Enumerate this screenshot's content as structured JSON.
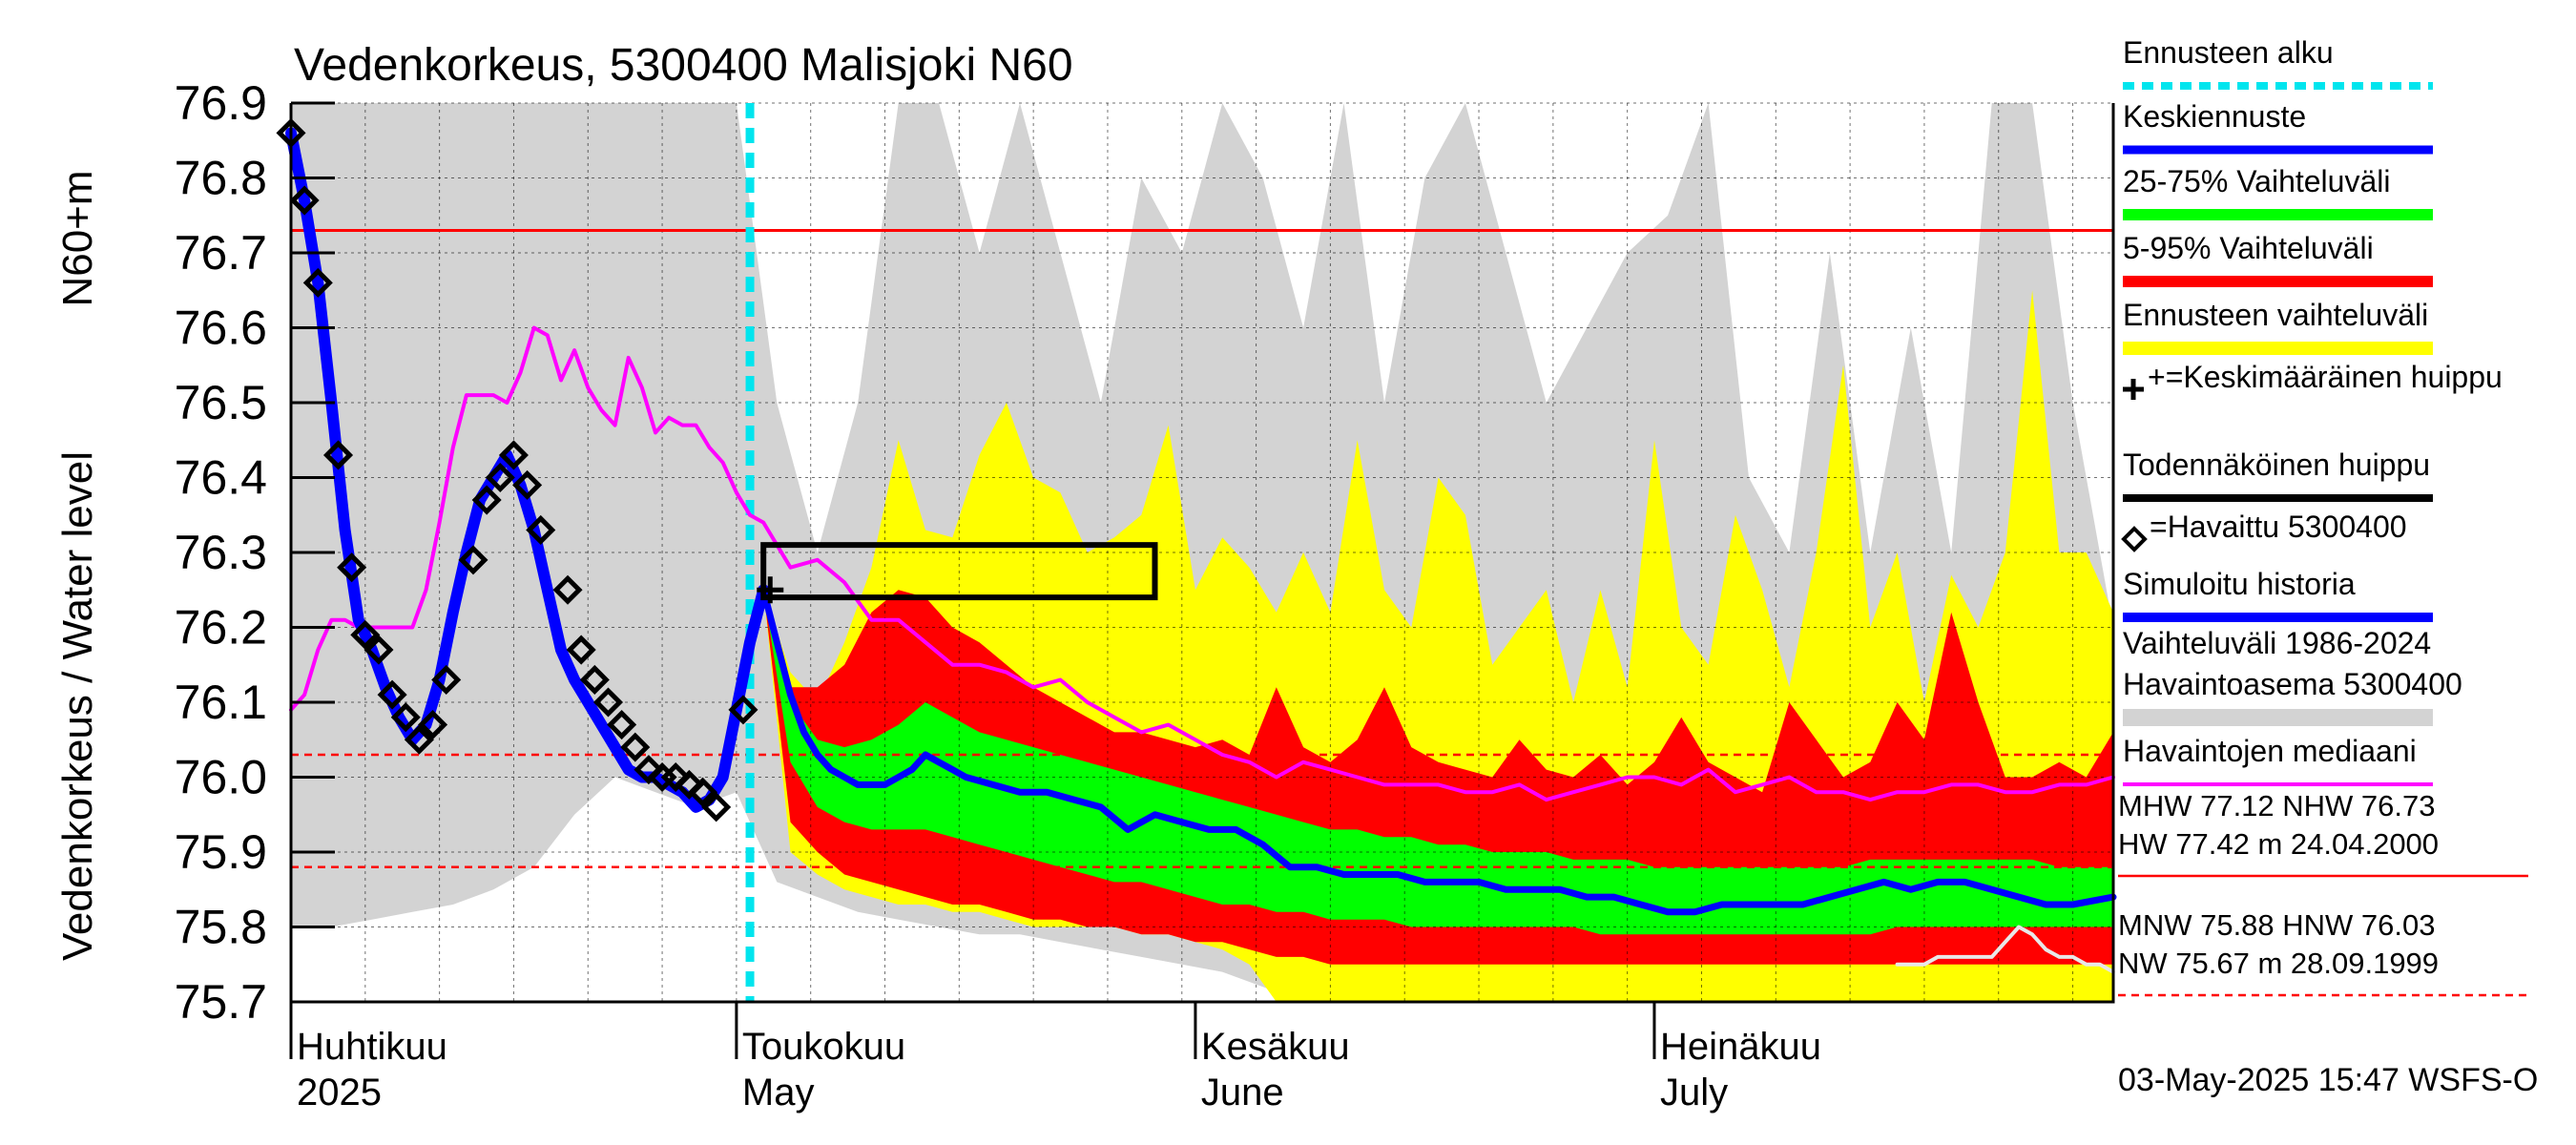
{
  "chart_data": {
    "type": "line",
    "title": "Vedenkorkeus, 5300400 Malisjoki N60",
    "ylabel_primary": "Vedenkorkeus / Water level",
    "ylabel_secondary": "N60+m",
    "ylim": [
      75.7,
      76.9
    ],
    "yticks": [
      75.7,
      75.8,
      75.9,
      76.0,
      76.1,
      76.2,
      76.3,
      76.4,
      76.5,
      76.6,
      76.7,
      76.8,
      76.9
    ],
    "ytick_labels": [
      "75.7",
      "75.8",
      "75.9",
      "76.0",
      "76.1",
      "76.2",
      "76.3",
      "76.4",
      "76.5",
      "76.6",
      "76.7",
      "76.8",
      "76.9"
    ],
    "x_range_days": [
      0,
      135
    ],
    "month_labels": [
      {
        "day": 0,
        "fi": "Huhtikuu",
        "en": "2025"
      },
      {
        "day": 33,
        "fi": "Toukokuu",
        "en": "May"
      },
      {
        "day": 67,
        "fi": "Kesäkuu",
        "en": "June"
      },
      {
        "day": 101,
        "fi": "Heinäkuu",
        "en": "July"
      }
    ],
    "forecast_start_day": 34,
    "grid": true,
    "legend_position": "right",
    "reference_lines": {
      "NHW": 76.73,
      "HNW": 76.03,
      "MNW": 75.88
    },
    "stats": {
      "line1": "MHW  77.12 NHW  76.73",
      "line2": "HW  77.42 m 24.04.2000",
      "line3": "MNW  75.88 HNW  76.03",
      "line4": "NW  75.67 m 28.09.1999"
    },
    "timestamp": "03-May-2025 15:47 WSFS-O",
    "legend": [
      {
        "label": "Ennusteen alku",
        "color": "#00e5ee",
        "style": "dashed"
      },
      {
        "label": "Keskiennuste",
        "color": "#0000ff",
        "style": "line"
      },
      {
        "label": "25-75% Vaihteluväli",
        "color": "#00ff00",
        "style": "line"
      },
      {
        "label": "5-95% Vaihteluväli",
        "color": "#ff0000",
        "style": "line"
      },
      {
        "label": "Ennusteen vaihteluväli",
        "color": "#ffff00",
        "style": "line"
      },
      {
        "label": "+=Keskimääräinen huippu",
        "color": "#000000",
        "style": "text"
      },
      {
        "label": "Todennäköinen huippu",
        "color": "#000000",
        "style": "line"
      },
      {
        "label": "=Havaittu 5300400",
        "color": "#000000",
        "style": "text"
      },
      {
        "label": "Simuloitu historia",
        "color": "#0000ff",
        "style": "line"
      },
      {
        "label": "Vaihteluväli 1986-2024",
        "color": "#d3d3d3",
        "style": "text"
      },
      {
        "label": "Havaintoasema 5300400",
        "color": "#d3d3d3",
        "style": "line"
      },
      {
        "label": "Havaintojen mediaani",
        "color": "#ff00ff",
        "style": "line"
      }
    ],
    "colors": {
      "history_band": "#d3d3d3",
      "forecast_band": "#ffff00",
      "p5_95": "#ff0000",
      "p25_75": "#00ff00",
      "median_forecast": "#0000ff",
      "simulated": "#0000ff",
      "obs_median": "#ff00ff",
      "forecast_start": "#00e5ee",
      "reference_solid": "#ff0000",
      "reference_dashed": "#ff0000"
    },
    "peak_box": {
      "x0": 35,
      "x1": 64,
      "y0": 76.24,
      "y1": 76.31
    },
    "mean_peak": {
      "x": 35.5,
      "y": 76.25
    },
    "observed": {
      "x": [
        0,
        1,
        2,
        3.5,
        4.5,
        5.5,
        6.5,
        7.5,
        8.5,
        9.5,
        10.5,
        11.5,
        13.5,
        14.5,
        15.5,
        16.5,
        17.5,
        18.5,
        20.5,
        21.5,
        22.5,
        23.5,
        24.5,
        25.5,
        26.5,
        27.5,
        28.5,
        29.5,
        30.5,
        31.5,
        33.5
      ],
      "y": [
        76.86,
        76.77,
        76.66,
        76.43,
        76.28,
        76.19,
        76.17,
        76.11,
        76.08,
        76.05,
        76.07,
        76.13,
        76.29,
        76.37,
        76.4,
        76.43,
        76.39,
        76.33,
        76.25,
        76.17,
        76.13,
        76.1,
        76.07,
        76.04,
        76.01,
        76.0,
        76.0,
        75.99,
        75.98,
        75.96,
        76.09
      ]
    },
    "simulated": {
      "x": [
        0,
        1,
        2,
        3,
        4,
        5,
        6,
        7,
        8,
        9,
        10,
        11,
        12,
        13,
        14,
        15,
        16,
        17,
        18,
        19,
        20,
        21,
        22,
        23,
        24,
        25,
        26,
        27,
        28,
        29,
        30,
        31,
        32,
        33,
        34,
        35
      ],
      "y": [
        76.86,
        76.77,
        76.66,
        76.5,
        76.33,
        76.21,
        76.17,
        76.12,
        76.08,
        76.05,
        76.07,
        76.13,
        76.22,
        76.3,
        76.37,
        76.4,
        76.43,
        76.39,
        76.33,
        76.25,
        76.17,
        76.13,
        76.1,
        76.07,
        76.04,
        76.01,
        76.0,
        76.0,
        75.99,
        75.98,
        75.96,
        75.97,
        76.0,
        76.09,
        76.18,
        76.25
      ]
    },
    "forecast_median": {
      "x": [
        35,
        36,
        37,
        38,
        39,
        40,
        41,
        42,
        43,
        44,
        45,
        46,
        47,
        48,
        49,
        50,
        52,
        54,
        56,
        58,
        60,
        62,
        64,
        66,
        68,
        70,
        72,
        74,
        76,
        78,
        80,
        82,
        84,
        86,
        88,
        90,
        92,
        94,
        96,
        98,
        100,
        102,
        104,
        106,
        108,
        110,
        112,
        114,
        116,
        118,
        120,
        122,
        124,
        126,
        128,
        130,
        132,
        135
      ],
      "y": [
        76.25,
        76.18,
        76.11,
        76.06,
        76.03,
        76.01,
        76.0,
        75.99,
        75.99,
        75.99,
        76.0,
        76.01,
        76.03,
        76.02,
        76.01,
        76.0,
        75.99,
        75.98,
        75.98,
        75.97,
        75.96,
        75.93,
        75.95,
        75.94,
        75.93,
        75.93,
        75.91,
        75.88,
        75.88,
        75.87,
        75.87,
        75.87,
        75.86,
        75.86,
        75.86,
        75.85,
        75.85,
        75.85,
        75.84,
        75.84,
        75.83,
        75.82,
        75.82,
        75.83,
        75.83,
        75.83,
        75.83,
        75.84,
        75.85,
        75.86,
        75.85,
        75.86,
        75.86,
        75.85,
        75.84,
        75.83,
        75.83,
        75.84
      ]
    },
    "band_x": [
      35,
      37,
      39,
      41,
      43,
      45,
      47,
      49,
      51,
      53,
      55,
      57,
      59,
      61,
      63,
      65,
      67,
      69,
      71,
      73,
      75,
      77,
      79,
      81,
      83,
      85,
      87,
      89,
      91,
      93,
      95,
      97,
      99,
      101,
      103,
      105,
      107,
      109,
      111,
      113,
      115,
      117,
      119,
      121,
      123,
      125,
      127,
      129,
      131,
      133,
      135
    ],
    "p25_75": {
      "upper": [
        76.25,
        76.1,
        76.05,
        76.04,
        76.05,
        76.07,
        76.1,
        76.08,
        76.06,
        76.05,
        76.04,
        76.03,
        76.02,
        76.01,
        76.0,
        75.99,
        75.98,
        75.97,
        75.96,
        75.95,
        75.94,
        75.93,
        75.93,
        75.92,
        75.92,
        75.91,
        75.91,
        75.9,
        75.9,
        75.9,
        75.89,
        75.89,
        75.89,
        75.88,
        75.88,
        75.88,
        75.88,
        75.88,
        75.88,
        75.88,
        75.88,
        75.89,
        75.89,
        75.89,
        75.89,
        75.89,
        75.89,
        75.89,
        75.88,
        75.88,
        75.88
      ],
      "lower": [
        76.25,
        76.02,
        75.96,
        75.94,
        75.93,
        75.93,
        75.93,
        75.92,
        75.91,
        75.9,
        75.89,
        75.88,
        75.87,
        75.86,
        75.86,
        75.85,
        75.84,
        75.83,
        75.83,
        75.82,
        75.82,
        75.81,
        75.81,
        75.81,
        75.8,
        75.8,
        75.8,
        75.8,
        75.8,
        75.8,
        75.8,
        75.79,
        75.79,
        75.79,
        75.79,
        75.79,
        75.79,
        75.79,
        75.79,
        75.79,
        75.79,
        75.79,
        75.8,
        75.8,
        75.8,
        75.8,
        75.8,
        75.8,
        75.8,
        75.8,
        75.8
      ]
    },
    "p5_95": {
      "upper": [
        76.25,
        76.12,
        76.12,
        76.15,
        76.22,
        76.25,
        76.24,
        76.2,
        76.18,
        76.15,
        76.12,
        76.1,
        76.08,
        76.06,
        76.06,
        76.05,
        76.04,
        76.05,
        76.03,
        76.12,
        76.04,
        76.02,
        76.05,
        76.12,
        76.04,
        76.02,
        76.01,
        76.0,
        76.05,
        76.01,
        76.0,
        76.03,
        75.99,
        76.02,
        76.08,
        76.02,
        76.0,
        75.98,
        76.1,
        76.05,
        76.0,
        76.02,
        76.1,
        76.05,
        76.22,
        76.1,
        76.0,
        76.0,
        76.02,
        76.0,
        76.06
      ],
      "lower": [
        76.25,
        75.94,
        75.9,
        75.87,
        75.86,
        75.85,
        75.84,
        75.83,
        75.83,
        75.82,
        75.81,
        75.81,
        75.8,
        75.8,
        75.79,
        75.79,
        75.78,
        75.78,
        75.77,
        75.76,
        75.76,
        75.75,
        75.75,
        75.75,
        75.75,
        75.75,
        75.75,
        75.75,
        75.75,
        75.75,
        75.75,
        75.75,
        75.75,
        75.75,
        75.75,
        75.75,
        75.75,
        75.75,
        75.75,
        75.75,
        75.75,
        75.75,
        75.75,
        75.75,
        75.75,
        75.75,
        75.75,
        75.75,
        75.75,
        75.75,
        75.75
      ]
    },
    "forecast_range": {
      "upper": [
        76.25,
        76.14,
        76.1,
        76.18,
        76.28,
        76.45,
        76.33,
        76.32,
        76.43,
        76.5,
        76.4,
        76.38,
        76.3,
        76.32,
        76.35,
        76.47,
        76.25,
        76.32,
        76.28,
        76.22,
        76.3,
        76.22,
        76.45,
        76.25,
        76.2,
        76.4,
        76.35,
        76.15,
        76.2,
        76.25,
        76.1,
        76.25,
        76.12,
        76.45,
        76.2,
        76.15,
        76.35,
        76.25,
        76.12,
        76.3,
        76.55,
        76.2,
        76.3,
        76.1,
        76.27,
        76.2,
        76.3,
        76.65,
        76.3,
        76.3,
        76.22
      ],
      "lower": [
        76.25,
        75.9,
        75.87,
        75.85,
        75.84,
        75.83,
        75.83,
        75.82,
        75.82,
        75.81,
        75.8,
        75.8,
        75.8,
        75.8,
        75.79,
        75.79,
        75.78,
        75.77,
        75.75,
        75.7,
        75.7,
        75.7,
        75.7,
        75.7,
        75.7,
        75.7,
        75.7,
        75.7,
        75.7,
        75.7,
        75.7,
        75.7,
        75.7,
        75.7,
        75.7,
        75.7,
        75.7,
        75.7,
        75.7,
        75.7,
        75.7,
        75.7,
        75.7,
        75.7,
        75.7,
        75.7,
        75.7,
        75.7,
        75.7,
        75.7,
        75.7
      ]
    },
    "history_range": {
      "x": [
        0,
        3,
        6,
        9,
        12,
        15,
        18,
        21,
        24,
        27,
        30,
        33,
        36,
        39,
        42,
        45,
        48,
        51,
        54,
        57,
        60,
        63,
        66,
        69,
        72,
        75,
        78,
        81,
        84,
        87,
        90,
        93,
        96,
        99,
        102,
        105,
        108,
        111,
        114,
        117,
        120,
        123,
        126,
        129,
        132,
        135
      ],
      "upper": [
        76.9,
        76.9,
        76.9,
        76.9,
        76.9,
        76.9,
        76.9,
        76.9,
        76.9,
        76.9,
        76.9,
        76.9,
        76.5,
        76.3,
        76.5,
        76.9,
        76.9,
        76.7,
        76.9,
        76.7,
        76.5,
        76.8,
        76.7,
        76.9,
        76.8,
        76.6,
        76.9,
        76.5,
        76.8,
        76.9,
        76.7,
        76.5,
        76.6,
        76.7,
        76.75,
        76.9,
        76.4,
        76.3,
        76.7,
        76.3,
        76.6,
        76.3,
        76.9,
        76.9,
        76.5,
        76.2
      ],
      "lower": [
        75.8,
        75.8,
        75.81,
        75.82,
        75.83,
        75.85,
        75.88,
        75.95,
        76.0,
        75.98,
        75.96,
        75.98,
        75.86,
        75.84,
        75.82,
        75.81,
        75.8,
        75.79,
        75.79,
        75.78,
        75.77,
        75.76,
        75.75,
        75.74,
        75.72,
        75.7,
        75.7,
        75.7,
        75.7,
        75.7,
        75.7,
        75.7,
        75.7,
        75.7,
        75.7,
        75.7,
        75.7,
        75.7,
        75.7,
        75.7,
        75.7,
        75.7,
        75.7,
        75.7,
        75.7,
        75.71
      ]
    },
    "history_low": {
      "x": [
        119,
        121,
        122,
        124,
        126,
        127,
        128,
        129,
        130,
        131,
        132,
        133,
        134,
        135
      ],
      "y": [
        75.75,
        75.75,
        75.76,
        75.76,
        75.76,
        75.78,
        75.8,
        75.79,
        75.77,
        75.76,
        75.76,
        75.75,
        75.75,
        75.74
      ]
    },
    "obs_median": {
      "x": [
        0,
        1,
        2,
        3,
        4,
        5,
        6,
        7,
        8,
        9,
        10,
        11,
        12,
        13,
        14,
        15,
        16,
        17,
        18,
        19,
        20,
        21,
        22,
        23,
        24,
        25,
        26,
        27,
        28,
        29,
        30,
        31,
        32,
        33,
        34,
        35,
        37,
        39,
        41,
        43,
        45,
        47,
        49,
        51,
        53,
        55,
        57,
        59,
        61,
        63,
        65,
        67,
        69,
        71,
        73,
        75,
        77,
        79,
        81,
        83,
        85,
        87,
        89,
        91,
        93,
        95,
        97,
        99,
        101,
        103,
        105,
        107,
        109,
        111,
        113,
        115,
        117,
        119,
        121,
        123,
        125,
        127,
        129,
        131,
        133,
        135
      ],
      "y": [
        76.09,
        76.11,
        76.17,
        76.21,
        76.21,
        76.2,
        76.2,
        76.2,
        76.2,
        76.2,
        76.25,
        76.34,
        76.44,
        76.51,
        76.51,
        76.51,
        76.5,
        76.54,
        76.6,
        76.59,
        76.53,
        76.57,
        76.52,
        76.49,
        76.47,
        76.56,
        76.52,
        76.46,
        76.48,
        76.47,
        76.47,
        76.44,
        76.42,
        76.38,
        76.35,
        76.34,
        76.28,
        76.29,
        76.26,
        76.21,
        76.21,
        76.18,
        76.15,
        76.15,
        76.14,
        76.12,
        76.13,
        76.1,
        76.08,
        76.06,
        76.07,
        76.05,
        76.03,
        76.02,
        76.0,
        76.02,
        76.01,
        76.0,
        75.99,
        75.99,
        75.99,
        75.98,
        75.98,
        75.99,
        75.97,
        75.98,
        75.99,
        76.0,
        76.0,
        75.99,
        76.01,
        75.98,
        75.99,
        76.0,
        75.98,
        75.98,
        75.97,
        75.98,
        75.98,
        75.99,
        75.99,
        75.98,
        75.98,
        75.99,
        75.99,
        76.0
      ]
    }
  }
}
